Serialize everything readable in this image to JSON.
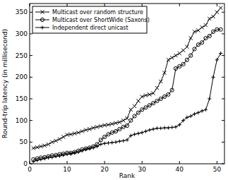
{
  "chart_data": {
    "type": "line",
    "x_label": "Rank",
    "y_label": "Round-trip latency (in millisecond)",
    "x": [
      1,
      2,
      3,
      4,
      5,
      6,
      7,
      8,
      9,
      10,
      11,
      12,
      13,
      14,
      15,
      16,
      17,
      18,
      19,
      20,
      21,
      22,
      23,
      24,
      25,
      26,
      27,
      28,
      29,
      30,
      31,
      32,
      33,
      34,
      35,
      36,
      37,
      38,
      39,
      40,
      41,
      42,
      43,
      44,
      45,
      46,
      47,
      48,
      49,
      50,
      51
    ],
    "series": [
      {
        "name": "Multicast over random structure",
        "color": "#000000",
        "marker": "x",
        "line_style": "solid",
        "values": [
          36,
          38,
          40,
          42,
          45,
          50,
          53,
          57,
          62,
          67,
          68,
          70,
          72,
          75,
          78,
          80,
          83,
          85,
          87,
          89,
          90,
          92,
          94,
          96,
          100,
          105,
          125,
          133,
          145,
          155,
          158,
          160,
          163,
          175,
          190,
          210,
          240,
          245,
          250,
          255,
          262,
          270,
          290,
          305,
          308,
          315,
          320,
          335,
          340,
          350,
          360
        ]
      },
      {
        "name": "Multicast over ShortWide (Saxons)",
        "color": "#000000",
        "marker": "o",
        "line_style": "solid",
        "values": [
          10,
          12,
          14,
          15,
          17,
          19,
          20,
          22,
          23,
          25,
          25,
          27,
          30,
          33,
          35,
          37,
          40,
          45,
          55,
          62,
          68,
          72,
          75,
          80,
          85,
          88,
          100,
          110,
          118,
          125,
          130,
          135,
          140,
          145,
          150,
          155,
          160,
          170,
          220,
          225,
          230,
          240,
          250,
          265,
          275,
          280,
          290,
          295,
          305,
          310,
          310
        ]
      },
      {
        "name": "Independent direct unicast",
        "color": "#000000",
        "marker": "+",
        "line_style": "solid",
        "values": [
          5,
          8,
          10,
          12,
          14,
          15,
          17,
          18,
          20,
          22,
          23,
          25,
          27,
          30,
          33,
          35,
          37,
          40,
          45,
          47,
          48,
          49,
          50,
          52,
          53,
          55,
          65,
          68,
          70,
          72,
          75,
          78,
          80,
          82,
          82,
          83,
          83,
          84,
          85,
          90,
          100,
          107,
          110,
          115,
          118,
          122,
          125,
          150,
          200,
          240,
          255
        ]
      }
    ],
    "xlim": [
      0,
      52
    ],
    "ylim": [
      0,
      370
    ],
    "xticks": [
      0,
      10,
      20,
      30,
      40,
      50
    ],
    "yticks": [
      0,
      50,
      100,
      150,
      200,
      250,
      300,
      350
    ],
    "grid": false,
    "legend": "top-left"
  }
}
